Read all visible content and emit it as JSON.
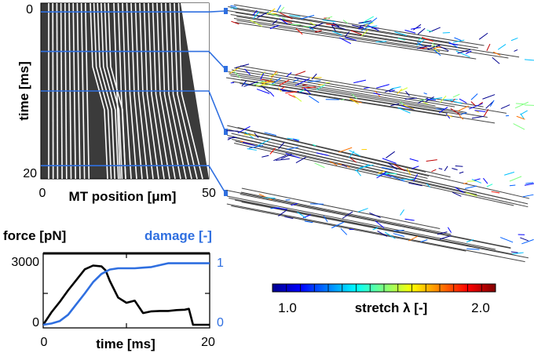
{
  "kymograph": {
    "y_label": "time [ms]",
    "x_label": "MT position [μm]",
    "y_ticks": [
      "0",
      "20"
    ],
    "x_ticks": [
      "0",
      "50"
    ],
    "snapshot_times_ms": [
      1,
      5.5,
      10,
      18.5
    ],
    "colors": {
      "background": "#3b3b3b",
      "filament": "#ffffff",
      "marker": "#2f6fe0"
    }
  },
  "colorbar": {
    "label": "stretch λ [-]",
    "min_label": "1.0",
    "max_label": "2.0",
    "min": 1.0,
    "max": 2.0,
    "colormap": "jet"
  },
  "chart_data": {
    "type": "line",
    "title": "",
    "xlabel": "time [ms]",
    "x_ticks": [
      "0",
      "20"
    ],
    "left_axis_label": "force [pN]",
    "left_ticks": [
      "3000",
      "0"
    ],
    "right_axis_label": "damage [-]",
    "right_ticks": [
      "1",
      "0"
    ],
    "xlim": [
      0,
      20
    ],
    "ylim_left": [
      0,
      3000
    ],
    "ylim_right": [
      0,
      1
    ],
    "series": [
      {
        "axis": "left",
        "color": "#000000",
        "x": [
          0,
          1,
          2,
          3,
          4,
          5,
          6,
          7,
          7.5,
          8,
          9,
          10,
          11,
          12,
          13,
          14,
          15,
          16,
          17,
          17.5,
          18,
          20
        ],
        "y": [
          0,
          600,
          1100,
          1650,
          2150,
          2650,
          2830,
          2790,
          2600,
          2100,
          1300,
          1050,
          1150,
          560,
          640,
          660,
          660,
          700,
          720,
          760,
          0,
          0
        ]
      },
      {
        "axis": "right",
        "color": "#2f6fe0",
        "x": [
          0,
          1,
          2,
          3,
          4,
          5,
          6,
          7,
          8,
          9,
          10,
          11,
          12,
          13,
          14,
          15,
          16,
          17,
          18,
          19,
          20
        ],
        "y": [
          0,
          0.02,
          0.06,
          0.16,
          0.33,
          0.5,
          0.68,
          0.81,
          0.88,
          0.9,
          0.9,
          0.9,
          0.91,
          0.92,
          0.95,
          0.98,
          0.98,
          0.98,
          0.98,
          0.98,
          0.98
        ]
      }
    ]
  }
}
